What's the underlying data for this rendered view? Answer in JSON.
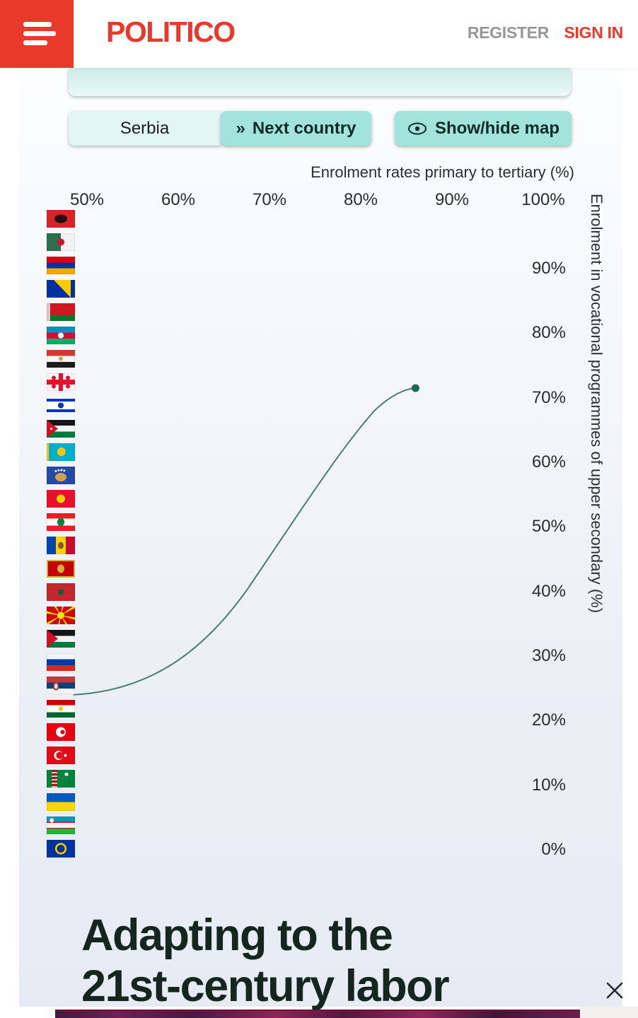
{
  "header": {
    "logo": "POLITICO",
    "register_label": "REGISTER",
    "signin_label": "SIGN IN"
  },
  "controls": {
    "country_label": "Serbia",
    "next_button": {
      "icon": "»",
      "label": "Next country"
    },
    "map_button": {
      "icon": "eye-icon",
      "label": "Show/hide map"
    }
  },
  "chart_data": {
    "type": "scatter",
    "title": "",
    "xlabel": "Enrolment rates primary to tertiary (%)",
    "ylabel": "Enrolment in vocational programmes of upper secondary (%)",
    "x_ticks": [
      "50%",
      "60%",
      "70%",
      "80%",
      "90%",
      "100%"
    ],
    "y_ticks": [
      "90%",
      "80%",
      "70%",
      "60%",
      "50%",
      "40%",
      "30%",
      "20%",
      "10%",
      "0%"
    ],
    "xlim": [
      50,
      100
    ],
    "ylim": [
      0,
      100
    ],
    "grid": false,
    "legend_position": "left-flag-column",
    "selected_country": "Serbia",
    "series": [
      {
        "name": "Serbia",
        "points": [
          {
            "x": 86,
            "y": 71.5
          }
        ],
        "trail_start": {
          "x": 48.5,
          "y": 24
        },
        "line_color": "#4a7a72",
        "marker_color": "#1b6a58"
      }
    ]
  },
  "flags": [
    {
      "id": "al",
      "name": "Albania"
    },
    {
      "id": "dz",
      "name": "Algeria"
    },
    {
      "id": "am",
      "name": "Armenia"
    },
    {
      "id": "ba",
      "name": "Bosnia and Herzegovina"
    },
    {
      "id": "by",
      "name": "Belarus"
    },
    {
      "id": "az",
      "name": "Azerbaijan"
    },
    {
      "id": "eg",
      "name": "Egypt"
    },
    {
      "id": "ge",
      "name": "Georgia"
    },
    {
      "id": "il",
      "name": "Israel"
    },
    {
      "id": "jo",
      "name": "Jordan"
    },
    {
      "id": "kz",
      "name": "Kazakhstan"
    },
    {
      "id": "xk",
      "name": "Kosovo"
    },
    {
      "id": "kg",
      "name": "Kyrgyzstan"
    },
    {
      "id": "lb",
      "name": "Lebanon"
    },
    {
      "id": "md",
      "name": "Moldova"
    },
    {
      "id": "me",
      "name": "Montenegro"
    },
    {
      "id": "ma",
      "name": "Morocco"
    },
    {
      "id": "mk",
      "name": "North Macedonia"
    },
    {
      "id": "ps",
      "name": "Palestine"
    },
    {
      "id": "ru",
      "name": "Russia"
    },
    {
      "id": "rs",
      "name": "Serbia"
    },
    {
      "id": "tj",
      "name": "Tajikistan"
    },
    {
      "id": "tn",
      "name": "Tunisia"
    },
    {
      "id": "tr",
      "name": "Turkey"
    },
    {
      "id": "tm",
      "name": "Turkmenistan"
    },
    {
      "id": "ua",
      "name": "Ukraine"
    },
    {
      "id": "uz",
      "name": "Uzbekistan"
    },
    {
      "id": "eu",
      "name": "European Union"
    }
  ],
  "heading": {
    "line1": "Adapting to the",
    "line2": "21st-century labor"
  },
  "colors": {
    "politico_red": "#e8392b",
    "button_teal": "#a2e4db",
    "light_teal": "#e2f7f3",
    "heading_dark": "#15261f",
    "curve": "#4a7a72",
    "marker": "#1b6a58"
  }
}
